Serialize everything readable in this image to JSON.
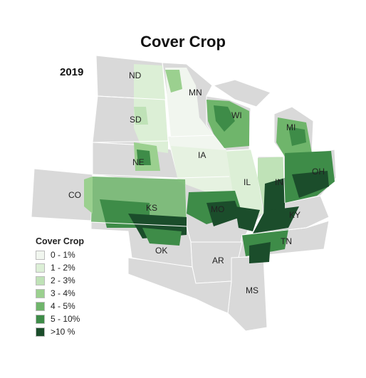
{
  "title": "Cover Crop",
  "year": "2019",
  "colors": {
    "background_state": "#d9d9d9",
    "state_border": "#ffffff",
    "c0": "#f1f6ef",
    "c1": "#dcefd6",
    "c2": "#bfe2b7",
    "c3": "#9bd08f",
    "c4": "#6fb56b",
    "c5": "#3e8c48",
    "c6": "#1b4d2b"
  },
  "states": {
    "ND": "ND",
    "MN": "MN",
    "SD": "SD",
    "WI": "WI",
    "MI": "MI",
    "NE": "NE",
    "IA": "IA",
    "IL": "IL",
    "IN": "IN",
    "OH": "OH",
    "CO": "CO",
    "KS": "KS",
    "MO": "MO",
    "KY": "KY",
    "TN": "TN",
    "OK": "OK",
    "AR": "AR",
    "MS": "MS"
  },
  "legend": {
    "title": "Cover Crop",
    "items": [
      {
        "label": "0 - 1%",
        "color": "#f1f6ef"
      },
      {
        "label": "1 - 2%",
        "color": "#dcefd6"
      },
      {
        "label": "2 - 3%",
        "color": "#bfe2b7"
      },
      {
        "label": "3 - 4%",
        "color": "#9bd08f"
      },
      {
        "label": "4 - 5%",
        "color": "#6fb56b"
      },
      {
        "label": "5 - 10%",
        "color": "#3e8c48"
      },
      {
        "label": ">10 %",
        "color": "#1b4d2b"
      }
    ]
  }
}
